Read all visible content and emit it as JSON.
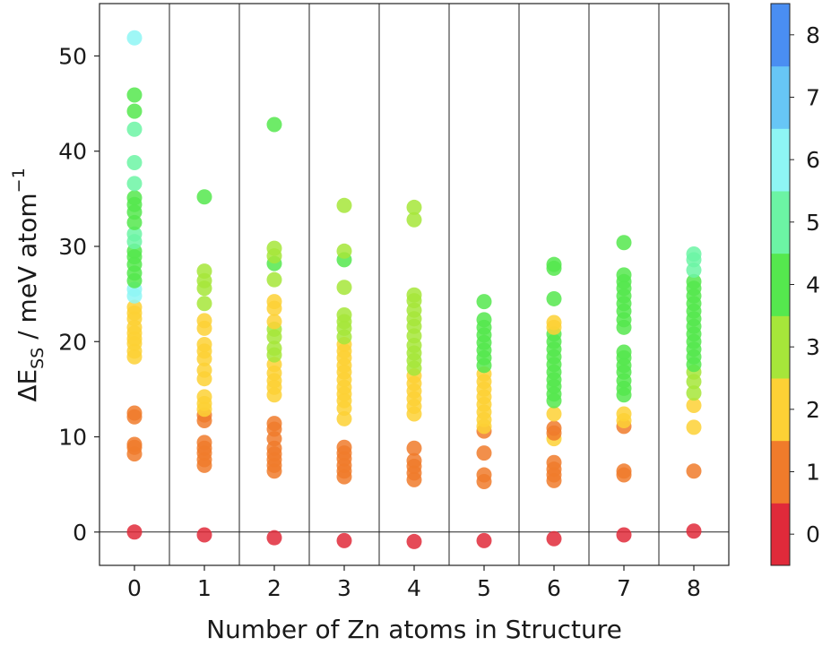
{
  "chart_data": {
    "type": "scatter",
    "xlabel": "Number of Zn atoms in Structure",
    "ylabel": {
      "delta": "ΔE",
      "subscript": "SS",
      "unit": " / meV atom",
      "exponent": "−1"
    },
    "categories": [
      "0",
      "1",
      "2",
      "3",
      "4",
      "5",
      "6",
      "7",
      "8"
    ],
    "ylim": [
      -3.5,
      55.5
    ],
    "yticks": [
      0,
      10,
      20,
      30,
      40,
      50
    ],
    "grid": false,
    "zero_line": true,
    "colorbar": {
      "ticks": [
        "0",
        "1",
        "2",
        "3",
        "4",
        "5",
        "6",
        "7",
        "8"
      ],
      "colors": [
        "#e02a3a",
        "#f07b2b",
        "#fdd135",
        "#a6e63a",
        "#55e84e",
        "#6cf4a4",
        "#8ef6f4",
        "#67c6f6",
        "#4a8ef2"
      ]
    },
    "series": [
      {
        "x": "0",
        "points": [
          [
            0,
            0
          ],
          [
            8.2,
            1
          ],
          [
            8.9,
            1
          ],
          [
            9.2,
            1
          ],
          [
            12.1,
            1
          ],
          [
            12.5,
            1
          ],
          [
            18.4,
            2
          ],
          [
            19.0,
            2
          ],
          [
            19.8,
            2
          ],
          [
            20.3,
            2
          ],
          [
            20.9,
            2
          ],
          [
            21.5,
            2
          ],
          [
            22.4,
            2
          ],
          [
            23.0,
            2
          ],
          [
            23.6,
            2
          ],
          [
            24.8,
            6
          ],
          [
            25.5,
            6
          ],
          [
            26.4,
            4
          ],
          [
            27.2,
            4
          ],
          [
            28.1,
            4
          ],
          [
            28.9,
            4
          ],
          [
            29.5,
            4
          ],
          [
            30.5,
            5
          ],
          [
            31.3,
            5
          ],
          [
            32.5,
            4
          ],
          [
            33.6,
            4
          ],
          [
            34.4,
            4
          ],
          [
            35.1,
            4
          ],
          [
            36.6,
            5
          ],
          [
            38.8,
            5
          ],
          [
            42.3,
            5
          ],
          [
            44.2,
            4
          ],
          [
            45.9,
            4
          ],
          [
            51.9,
            6
          ]
        ]
      },
      {
        "x": "1",
        "points": [
          [
            -0.3,
            0
          ],
          [
            7.0,
            1
          ],
          [
            7.6,
            1
          ],
          [
            8.3,
            1
          ],
          [
            8.8,
            1
          ],
          [
            9.4,
            1
          ],
          [
            11.7,
            1
          ],
          [
            12.3,
            1
          ],
          [
            12.9,
            2
          ],
          [
            13.5,
            2
          ],
          [
            14.2,
            2
          ],
          [
            16.1,
            2
          ],
          [
            17.0,
            2
          ],
          [
            18.2,
            2
          ],
          [
            19.0,
            2
          ],
          [
            19.7,
            2
          ],
          [
            21.4,
            2
          ],
          [
            22.2,
            2
          ],
          [
            24.0,
            3
          ],
          [
            25.6,
            3
          ],
          [
            26.4,
            3
          ],
          [
            27.4,
            3
          ],
          [
            35.2,
            4
          ]
        ]
      },
      {
        "x": "2",
        "points": [
          [
            -0.6,
            0
          ],
          [
            6.4,
            1
          ],
          [
            7.0,
            1
          ],
          [
            7.6,
            1
          ],
          [
            8.2,
            1
          ],
          [
            8.8,
            1
          ],
          [
            9.8,
            1
          ],
          [
            10.8,
            1
          ],
          [
            11.4,
            1
          ],
          [
            14.4,
            2
          ],
          [
            15.2,
            2
          ],
          [
            15.9,
            2
          ],
          [
            16.7,
            2
          ],
          [
            17.6,
            2
          ],
          [
            18.6,
            3
          ],
          [
            19.3,
            3
          ],
          [
            20.5,
            3
          ],
          [
            21.3,
            3
          ],
          [
            22.1,
            2
          ],
          [
            23.5,
            2
          ],
          [
            24.2,
            2
          ],
          [
            26.5,
            3
          ],
          [
            28.2,
            4
          ],
          [
            29.0,
            3
          ],
          [
            29.8,
            3
          ],
          [
            42.8,
            4
          ]
        ]
      },
      {
        "x": "3",
        "points": [
          [
            -0.9,
            0
          ],
          [
            5.8,
            1
          ],
          [
            6.4,
            1
          ],
          [
            7.0,
            1
          ],
          [
            7.7,
            1
          ],
          [
            8.3,
            1
          ],
          [
            8.9,
            1
          ],
          [
            11.9,
            2
          ],
          [
            13.0,
            2
          ],
          [
            13.8,
            2
          ],
          [
            14.5,
            2
          ],
          [
            15.2,
            2
          ],
          [
            16.0,
            2
          ],
          [
            16.8,
            2
          ],
          [
            17.5,
            2
          ],
          [
            18.3,
            2
          ],
          [
            19.0,
            2
          ],
          [
            19.7,
            2
          ],
          [
            20.5,
            3
          ],
          [
            21.4,
            3
          ],
          [
            22.1,
            3
          ],
          [
            22.8,
            3
          ],
          [
            25.7,
            3
          ],
          [
            28.6,
            4
          ],
          [
            29.5,
            3
          ],
          [
            34.3,
            3
          ]
        ]
      },
      {
        "x": "4",
        "points": [
          [
            -1.0,
            0
          ],
          [
            5.5,
            1
          ],
          [
            6.2,
            1
          ],
          [
            6.9,
            1
          ],
          [
            7.5,
            1
          ],
          [
            8.8,
            1
          ],
          [
            12.4,
            2
          ],
          [
            13.2,
            2
          ],
          [
            14.0,
            2
          ],
          [
            14.8,
            2
          ],
          [
            15.6,
            2
          ],
          [
            16.4,
            2
          ],
          [
            17.2,
            3
          ],
          [
            18.0,
            3
          ],
          [
            18.8,
            3
          ],
          [
            19.6,
            3
          ],
          [
            20.6,
            3
          ],
          [
            21.6,
            3
          ],
          [
            22.4,
            3
          ],
          [
            23.3,
            3
          ],
          [
            24.3,
            3
          ],
          [
            24.9,
            3
          ],
          [
            32.8,
            3
          ],
          [
            34.1,
            3
          ]
        ]
      },
      {
        "x": "5",
        "points": [
          [
            -0.9,
            0
          ],
          [
            5.3,
            1
          ],
          [
            6.0,
            1
          ],
          [
            8.3,
            1
          ],
          [
            10.6,
            1
          ],
          [
            11.1,
            2
          ],
          [
            11.8,
            2
          ],
          [
            12.6,
            2
          ],
          [
            13.4,
            2
          ],
          [
            14.2,
            2
          ],
          [
            15.0,
            2
          ],
          [
            15.8,
            2
          ],
          [
            16.6,
            2
          ],
          [
            17.5,
            4
          ],
          [
            18.3,
            4
          ],
          [
            19.1,
            4
          ],
          [
            19.9,
            4
          ],
          [
            20.7,
            4
          ],
          [
            21.5,
            4
          ],
          [
            22.3,
            4
          ],
          [
            24.2,
            4
          ]
        ]
      },
      {
        "x": "6",
        "points": [
          [
            -0.7,
            0
          ],
          [
            5.4,
            1
          ],
          [
            6.0,
            1
          ],
          [
            6.6,
            1
          ],
          [
            7.3,
            1
          ],
          [
            9.8,
            2
          ],
          [
            10.4,
            1
          ],
          [
            10.9,
            1
          ],
          [
            12.4,
            2
          ],
          [
            13.8,
            4
          ],
          [
            14.5,
            4
          ],
          [
            15.3,
            4
          ],
          [
            16.0,
            4
          ],
          [
            16.8,
            4
          ],
          [
            17.6,
            4
          ],
          [
            18.4,
            4
          ],
          [
            19.2,
            4
          ],
          [
            20.0,
            4
          ],
          [
            20.8,
            4
          ],
          [
            21.5,
            2
          ],
          [
            22.0,
            2
          ],
          [
            24.5,
            4
          ],
          [
            27.7,
            4
          ],
          [
            28.1,
            4
          ]
        ]
      },
      {
        "x": "7",
        "points": [
          [
            -0.3,
            0
          ],
          [
            6.0,
            1
          ],
          [
            6.4,
            1
          ],
          [
            11.1,
            1
          ],
          [
            11.7,
            2
          ],
          [
            12.4,
            2
          ],
          [
            14.4,
            4
          ],
          [
            15.1,
            4
          ],
          [
            15.9,
            4
          ],
          [
            16.8,
            4
          ],
          [
            17.5,
            4
          ],
          [
            18.3,
            4
          ],
          [
            18.9,
            4
          ],
          [
            21.5,
            4
          ],
          [
            22.3,
            4
          ],
          [
            23.2,
            4
          ],
          [
            24.0,
            4
          ],
          [
            24.8,
            4
          ],
          [
            25.6,
            4
          ],
          [
            26.3,
            4
          ],
          [
            27.0,
            4
          ],
          [
            30.4,
            4
          ]
        ]
      },
      {
        "x": "8",
        "points": [
          [
            0.1,
            0
          ],
          [
            6.4,
            1
          ],
          [
            11.0,
            2
          ],
          [
            13.3,
            2
          ],
          [
            14.6,
            3
          ],
          [
            15.8,
            3
          ],
          [
            16.8,
            3
          ],
          [
            17.6,
            4
          ],
          [
            18.4,
            4
          ],
          [
            19.2,
            4
          ],
          [
            20.0,
            4
          ],
          [
            20.8,
            4
          ],
          [
            21.6,
            4
          ],
          [
            22.4,
            4
          ],
          [
            23.2,
            4
          ],
          [
            24.0,
            4
          ],
          [
            24.8,
            4
          ],
          [
            25.6,
            4
          ],
          [
            26.3,
            4
          ],
          [
            27.5,
            5
          ],
          [
            28.6,
            5
          ],
          [
            29.2,
            5
          ]
        ]
      }
    ]
  }
}
